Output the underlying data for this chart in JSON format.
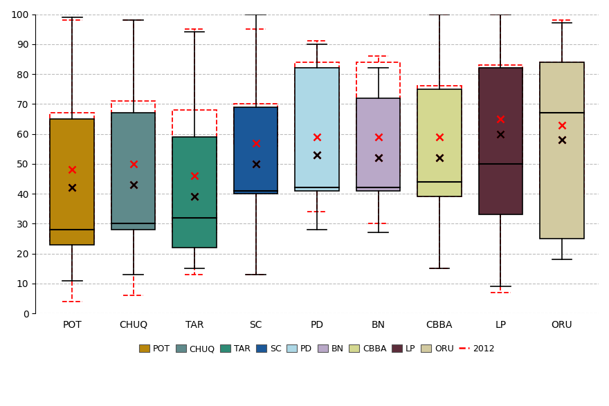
{
  "departments": [
    "POT",
    "CHUQ",
    "TAR",
    "SC",
    "PD",
    "BN",
    "CBBA",
    "LP",
    "ORU"
  ],
  "colors_2022": [
    "#B8860B",
    "#5F8A8B",
    "#2E8B75",
    "#1B5899",
    "#ADD8E6",
    "#B9A8C8",
    "#D4D890",
    "#5C2D3A",
    "#D2CAA0"
  ],
  "boxes_2022": [
    {
      "whislo": 11,
      "q1": 23,
      "med": 28,
      "q3": 65,
      "whishi": 99,
      "mean": 42
    },
    {
      "whislo": 13,
      "q1": 28,
      "med": 30,
      "q3": 67,
      "whishi": 98,
      "mean": 43
    },
    {
      "whislo": 15,
      "q1": 22,
      "med": 32,
      "q3": 59,
      "whishi": 94,
      "mean": 39
    },
    {
      "whislo": 13,
      "q1": 40,
      "med": 41,
      "q3": 69,
      "whishi": 100,
      "mean": 50
    },
    {
      "whislo": 28,
      "q1": 41,
      "med": 42,
      "q3": 82,
      "whishi": 90,
      "mean": 53
    },
    {
      "whislo": 27,
      "q1": 41,
      "med": 42,
      "q3": 72,
      "whishi": 82,
      "mean": 52
    },
    {
      "whislo": 15,
      "q1": 39,
      "med": 44,
      "q3": 75,
      "whishi": 100,
      "mean": 52
    },
    {
      "whislo": 9,
      "q1": 33,
      "med": 50,
      "q3": 82,
      "whishi": 100,
      "mean": 60
    },
    {
      "whislo": 18,
      "q1": 25,
      "med": 67,
      "q3": 84,
      "whishi": 97,
      "mean": 58
    }
  ],
  "boxes_2012": [
    {
      "whislo": 4,
      "q1": 24,
      "med": 42,
      "q3": 67,
      "whishi": 98,
      "mean": 48
    },
    {
      "whislo": 6,
      "q1": 30,
      "med": 42,
      "q3": 71,
      "whishi": 98,
      "mean": 50
    },
    {
      "whislo": 13,
      "q1": 27,
      "med": 45,
      "q3": 68,
      "whishi": 95,
      "mean": 46
    },
    {
      "whislo": 13,
      "q1": 56,
      "med": 57,
      "q3": 70,
      "whishi": 95,
      "mean": 57
    },
    {
      "whislo": 34,
      "q1": 54,
      "med": 55,
      "q3": 84,
      "whishi": 91,
      "mean": 59
    },
    {
      "whislo": 30,
      "q1": 46,
      "med": 55,
      "q3": 84,
      "whishi": 86,
      "mean": 59
    },
    {
      "whislo": 15,
      "q1": 39,
      "med": 55,
      "q3": 76,
      "whishi": 100,
      "mean": 59
    },
    {
      "whislo": 7,
      "q1": 49,
      "med": 65,
      "q3": 83,
      "whishi": 100,
      "mean": 65
    },
    {
      "whislo": 39,
      "q1": 39,
      "med": 67,
      "q3": 84,
      "whishi": 98,
      "mean": 63
    }
  ],
  "ylim": [
    0,
    100
  ],
  "yticks": [
    0,
    10,
    20,
    30,
    40,
    50,
    60,
    70,
    80,
    90,
    100
  ],
  "background_color": "#FFFFFF",
  "grid_color": "#BBBBBB"
}
